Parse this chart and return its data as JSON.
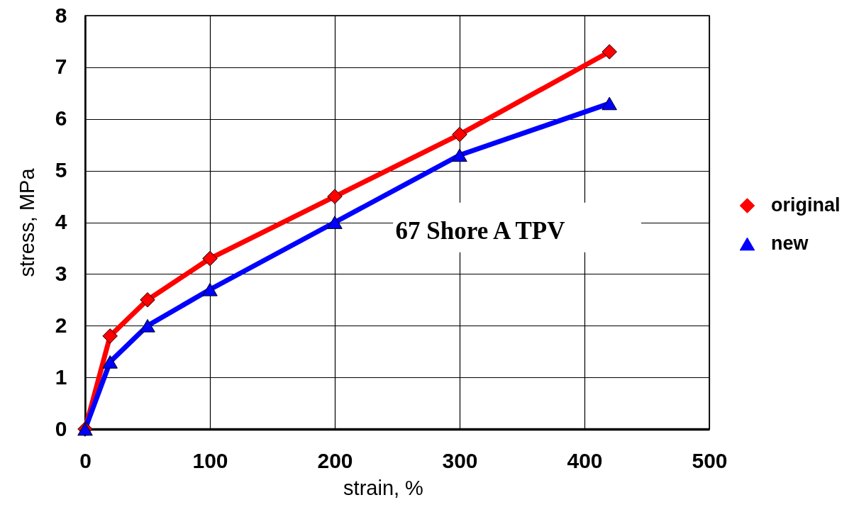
{
  "chart_data": {
    "type": "line",
    "xlabel": "strain, %",
    "ylabel": "stress, MPa",
    "x": [
      0,
      20,
      50,
      100,
      200,
      300,
      420
    ],
    "series": [
      {
        "name": "original",
        "color": "#ff0000",
        "marker": "diamond",
        "values": [
          0,
          1.8,
          2.5,
          3.3,
          4.5,
          5.7,
          7.3
        ]
      },
      {
        "name": "new",
        "color": "#0000ff",
        "marker": "triangle",
        "values": [
          0,
          1.3,
          2.0,
          2.7,
          4.0,
          5.3,
          6.3
        ]
      }
    ],
    "xlim": [
      0,
      500
    ],
    "xticks": [
      0,
      100,
      200,
      300,
      400,
      500
    ],
    "ylim": [
      0,
      8
    ],
    "yticks": [
      0,
      1,
      2,
      3,
      4,
      5,
      6,
      7,
      8
    ],
    "grid": true,
    "legend": "right",
    "line_style": "solid",
    "annotations": [
      "67 Shore A TPV"
    ]
  }
}
